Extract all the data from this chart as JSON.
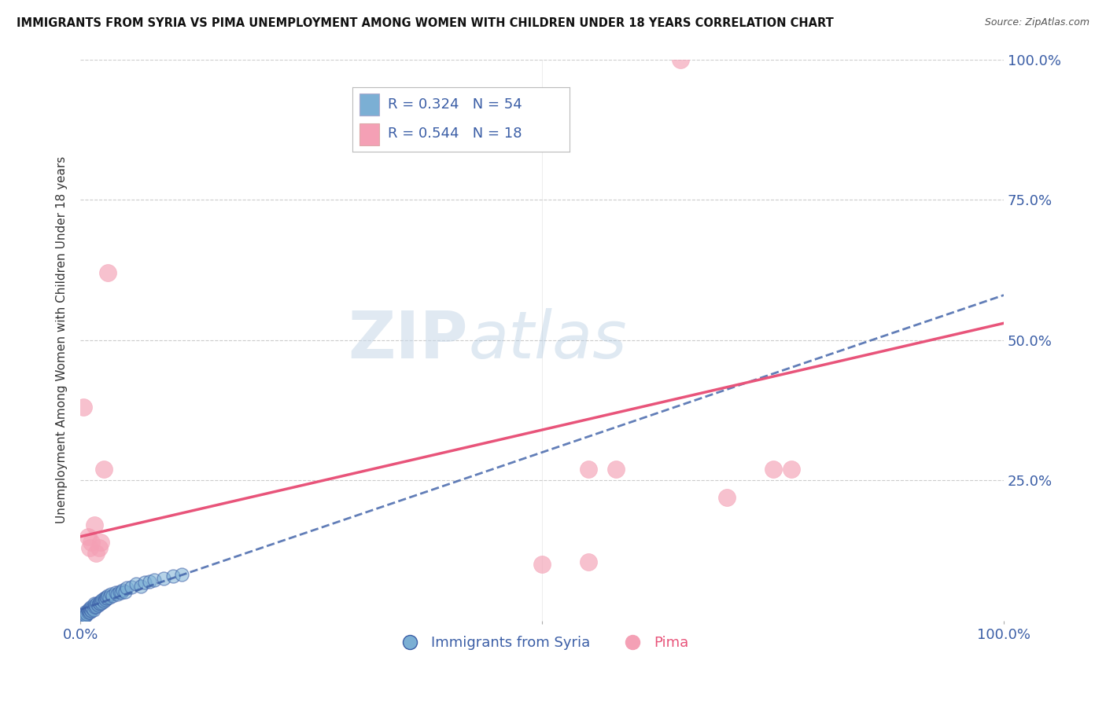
{
  "title": "IMMIGRANTS FROM SYRIA VS PIMA UNEMPLOYMENT AMONG WOMEN WITH CHILDREN UNDER 18 YEARS CORRELATION CHART",
  "source": "Source: ZipAtlas.com",
  "ylabel": "Unemployment Among Women with Children Under 18 years",
  "legend_label_blue": "Immigrants from Syria",
  "legend_label_pink": "Pima",
  "R_blue": 0.324,
  "N_blue": 54,
  "R_pink": 0.544,
  "N_pink": 18,
  "xlim": [
    0,
    1.0
  ],
  "ylim": [
    0,
    1.0
  ],
  "color_blue": "#7BAFD4",
  "color_pink": "#F4A0B5",
  "trendline_blue_color": "#3B5EA6",
  "trendline_pink_color": "#E8547A",
  "text_blue_color": "#3B5EA6",
  "background_color": "#FFFFFF",
  "watermark_zip": "ZIP",
  "watermark_atlas": "atlas",
  "blue_points": [
    [
      0.001,
      0.005
    ],
    [
      0.002,
      0.01
    ],
    [
      0.003,
      0.008
    ],
    [
      0.004,
      0.012
    ],
    [
      0.005,
      0.015
    ],
    [
      0.005,
      0.008
    ],
    [
      0.006,
      0.01
    ],
    [
      0.007,
      0.012
    ],
    [
      0.008,
      0.015
    ],
    [
      0.008,
      0.02
    ],
    [
      0.009,
      0.018
    ],
    [
      0.01,
      0.015
    ],
    [
      0.01,
      0.022
    ],
    [
      0.011,
      0.02
    ],
    [
      0.012,
      0.018
    ],
    [
      0.012,
      0.025
    ],
    [
      0.013,
      0.022
    ],
    [
      0.014,
      0.02
    ],
    [
      0.015,
      0.025
    ],
    [
      0.015,
      0.03
    ],
    [
      0.016,
      0.028
    ],
    [
      0.017,
      0.025
    ],
    [
      0.018,
      0.03
    ],
    [
      0.019,
      0.028
    ],
    [
      0.02,
      0.032
    ],
    [
      0.021,
      0.03
    ],
    [
      0.022,
      0.035
    ],
    [
      0.023,
      0.032
    ],
    [
      0.024,
      0.038
    ],
    [
      0.025,
      0.035
    ],
    [
      0.026,
      0.04
    ],
    [
      0.027,
      0.038
    ],
    [
      0.028,
      0.042
    ],
    [
      0.029,
      0.04
    ],
    [
      0.03,
      0.045
    ],
    [
      0.031,
      0.042
    ],
    [
      0.033,
      0.048
    ],
    [
      0.035,
      0.045
    ],
    [
      0.038,
      0.05
    ],
    [
      0.04,
      0.048
    ],
    [
      0.042,
      0.052
    ],
    [
      0.044,
      0.05
    ],
    [
      0.046,
      0.055
    ],
    [
      0.048,
      0.052
    ],
    [
      0.05,
      0.058
    ],
    [
      0.055,
      0.06
    ],
    [
      0.06,
      0.065
    ],
    [
      0.065,
      0.062
    ],
    [
      0.07,
      0.068
    ],
    [
      0.075,
      0.07
    ],
    [
      0.08,
      0.072
    ],
    [
      0.09,
      0.075
    ],
    [
      0.1,
      0.08
    ],
    [
      0.11,
      0.082
    ]
  ],
  "pink_points": [
    [
      0.003,
      0.38
    ],
    [
      0.008,
      0.15
    ],
    [
      0.01,
      0.13
    ],
    [
      0.012,
      0.14
    ],
    [
      0.015,
      0.17
    ],
    [
      0.017,
      0.12
    ],
    [
      0.02,
      0.13
    ],
    [
      0.022,
      0.14
    ],
    [
      0.025,
      0.27
    ],
    [
      0.03,
      0.62
    ],
    [
      0.55,
      0.27
    ],
    [
      0.58,
      0.27
    ],
    [
      0.65,
      1.0
    ],
    [
      0.7,
      0.22
    ],
    [
      0.75,
      0.27
    ],
    [
      0.77,
      0.27
    ],
    [
      0.5,
      0.1
    ],
    [
      0.55,
      0.105
    ]
  ],
  "pink_trendline": [
    0.0,
    0.15,
    1.0,
    0.53
  ],
  "blue_trendline": [
    0.0,
    0.02,
    1.0,
    0.58
  ]
}
